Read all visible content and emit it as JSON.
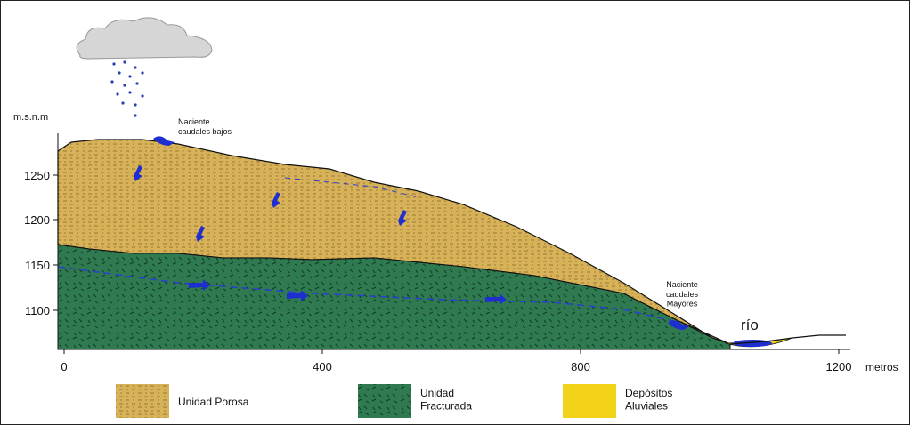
{
  "diagram": {
    "y_axis": {
      "label": "m.s.n.m",
      "ticks": [
        1250,
        1200,
        1150,
        1100
      ]
    },
    "x_axis": {
      "label": "metros",
      "ticks": [
        0,
        400,
        800,
        1200
      ]
    },
    "annotations": {
      "spring_low": [
        "Naciente",
        "caudales bajos"
      ],
      "spring_high": [
        "Naciente",
        "caudales",
        "Mayores"
      ],
      "river": "río"
    },
    "legend": [
      {
        "label": [
          "Unidad Porosa"
        ]
      },
      {
        "label": [
          "Unidad",
          "Fracturada"
        ]
      },
      {
        "label": [
          "Depósitos",
          "Aluviales"
        ]
      }
    ]
  }
}
